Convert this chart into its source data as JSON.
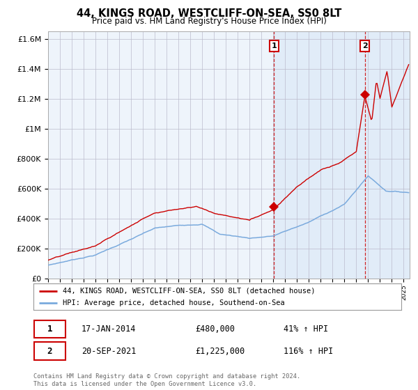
{
  "title": "44, KINGS ROAD, WESTCLIFF-ON-SEA, SS0 8LT",
  "subtitle": "Price paid vs. HM Land Registry's House Price Index (HPI)",
  "legend_property": "44, KINGS ROAD, WESTCLIFF-ON-SEA, SS0 8LT (detached house)",
  "legend_hpi": "HPI: Average price, detached house, Southend-on-Sea",
  "sale1_label": "1",
  "sale1_date": "17-JAN-2014",
  "sale1_price": "£480,000",
  "sale1_hpi": "41% ↑ HPI",
  "sale1_year": 2014.05,
  "sale1_value": 480000,
  "sale2_label": "2",
  "sale2_date": "20-SEP-2021",
  "sale2_price": "£1,225,000",
  "sale2_hpi": "116% ↑ HPI",
  "sale2_year": 2021.72,
  "sale2_value": 1225000,
  "property_color": "#cc0000",
  "hpi_color": "#7aaadd",
  "background_color": "#ffffff",
  "plot_bg_color": "#eef4fb",
  "grid_color": "#bbbbcc",
  "ylim": [
    0,
    1650000
  ],
  "xlim_start": 1995.0,
  "xlim_end": 2025.5,
  "footer": "Contains HM Land Registry data © Crown copyright and database right 2024.\nThis data is licensed under the Open Government Licence v3.0."
}
